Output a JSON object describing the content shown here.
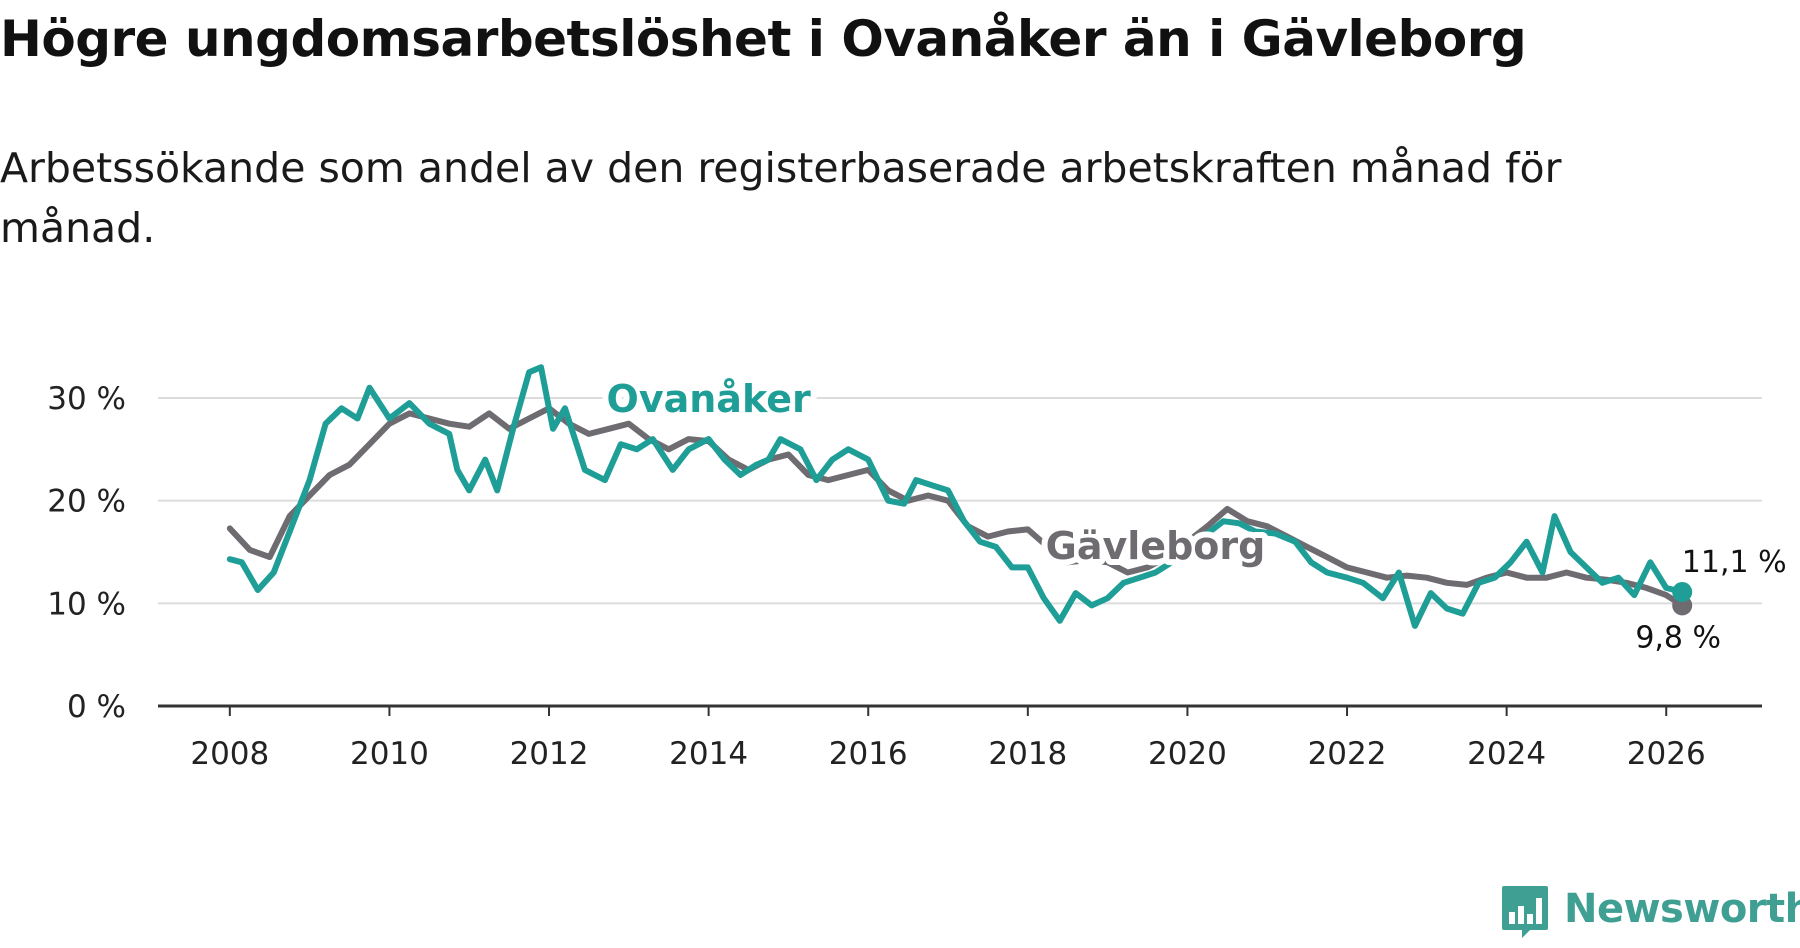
{
  "title": "Högre ungdomsarbetslöshet i Ovanåker än i Gävleborg",
  "subtitle": "Arbetssökande som andel av den registerbaserade arbetskraften månad för månad.",
  "brand": {
    "name": "Newsworthy",
    "color": "#3f9f93",
    "icon": "bar-chart-bubble-icon"
  },
  "chart_data": {
    "type": "line",
    "title": "Högre ungdomsarbetslöshet i Ovanåker än i Gävleborg",
    "xlabel": "",
    "ylabel": "",
    "xlim": [
      2007.1,
      2027.2
    ],
    "ylim": [
      0,
      30
    ],
    "x_ticks": [
      2008,
      2010,
      2012,
      2014,
      2016,
      2018,
      2020,
      2022,
      2024,
      2026
    ],
    "y_ticks": [
      0,
      10,
      20,
      30
    ],
    "y_tick_labels": [
      "0 %",
      "10 %",
      "20 %",
      "30 %"
    ],
    "grid": true,
    "series": [
      {
        "name": "Gävleborg",
        "color": "#6e6c71",
        "end_label": "9,8 %",
        "points": [
          [
            2008.0,
            17.3
          ],
          [
            2008.25,
            15.2
          ],
          [
            2008.5,
            14.5
          ],
          [
            2008.75,
            18.5
          ],
          [
            2009.0,
            20.5
          ],
          [
            2009.25,
            22.5
          ],
          [
            2009.5,
            23.5
          ],
          [
            2009.75,
            25.5
          ],
          [
            2010.0,
            27.5
          ],
          [
            2010.25,
            28.5
          ],
          [
            2010.5,
            28.0
          ],
          [
            2010.75,
            27.5
          ],
          [
            2011.0,
            27.2
          ],
          [
            2011.25,
            28.5
          ],
          [
            2011.5,
            27.0
          ],
          [
            2011.75,
            28.0
          ],
          [
            2012.0,
            29.0
          ],
          [
            2012.25,
            27.5
          ],
          [
            2012.5,
            26.5
          ],
          [
            2012.75,
            27.0
          ],
          [
            2013.0,
            27.5
          ],
          [
            2013.25,
            26.0
          ],
          [
            2013.5,
            25.0
          ],
          [
            2013.75,
            26.0
          ],
          [
            2014.0,
            25.8
          ],
          [
            2014.25,
            24.0
          ],
          [
            2014.5,
            23.0
          ],
          [
            2014.75,
            24.0
          ],
          [
            2015.0,
            24.5
          ],
          [
            2015.25,
            22.5
          ],
          [
            2015.5,
            22.0
          ],
          [
            2015.75,
            22.5
          ],
          [
            2016.0,
            23.0
          ],
          [
            2016.25,
            21.0
          ],
          [
            2016.5,
            20.0
          ],
          [
            2016.75,
            20.5
          ],
          [
            2017.0,
            20.0
          ],
          [
            2017.25,
            17.5
          ],
          [
            2017.5,
            16.5
          ],
          [
            2017.75,
            17.0
          ],
          [
            2018.0,
            17.2
          ],
          [
            2018.25,
            15.5
          ],
          [
            2018.5,
            14.0
          ],
          [
            2018.75,
            14.2
          ],
          [
            2019.0,
            14.0
          ],
          [
            2019.25,
            13.0
          ],
          [
            2019.5,
            13.5
          ],
          [
            2019.75,
            14.5
          ],
          [
            2020.0,
            16.0
          ],
          [
            2020.25,
            17.5
          ],
          [
            2020.5,
            19.2
          ],
          [
            2020.75,
            18.0
          ],
          [
            2021.0,
            17.5
          ],
          [
            2021.25,
            16.5
          ],
          [
            2021.5,
            15.5
          ],
          [
            2021.75,
            14.5
          ],
          [
            2022.0,
            13.5
          ],
          [
            2022.25,
            13.0
          ],
          [
            2022.5,
            12.5
          ],
          [
            2022.75,
            12.7
          ],
          [
            2023.0,
            12.5
          ],
          [
            2023.25,
            12.0
          ],
          [
            2023.5,
            11.8
          ],
          [
            2023.75,
            12.5
          ],
          [
            2024.0,
            13.0
          ],
          [
            2024.25,
            12.5
          ],
          [
            2024.5,
            12.5
          ],
          [
            2024.75,
            13.0
          ],
          [
            2025.0,
            12.5
          ],
          [
            2025.25,
            12.3
          ],
          [
            2025.5,
            12.0
          ],
          [
            2025.75,
            11.5
          ],
          [
            2026.0,
            10.8
          ],
          [
            2026.2,
            9.8
          ]
        ]
      },
      {
        "name": "Ovanåker",
        "color": "#1e9e96",
        "end_label": "11,1 %",
        "points": [
          [
            2008.0,
            14.3
          ],
          [
            2008.15,
            14.0
          ],
          [
            2008.35,
            11.3
          ],
          [
            2008.55,
            13.0
          ],
          [
            2008.75,
            17.0
          ],
          [
            2009.0,
            22.0
          ],
          [
            2009.2,
            27.5
          ],
          [
            2009.4,
            29.0
          ],
          [
            2009.6,
            28.0
          ],
          [
            2009.75,
            31.0
          ],
          [
            2010.0,
            28.0
          ],
          [
            2010.25,
            29.5
          ],
          [
            2010.5,
            27.5
          ],
          [
            2010.75,
            26.5
          ],
          [
            2010.85,
            23.0
          ],
          [
            2011.0,
            21.0
          ],
          [
            2011.2,
            24.0
          ],
          [
            2011.35,
            21.0
          ],
          [
            2011.55,
            27.0
          ],
          [
            2011.75,
            32.5
          ],
          [
            2011.9,
            33.0
          ],
          [
            2012.05,
            27.0
          ],
          [
            2012.2,
            29.0
          ],
          [
            2012.45,
            23.0
          ],
          [
            2012.7,
            22.0
          ],
          [
            2012.9,
            25.5
          ],
          [
            2013.1,
            25.0
          ],
          [
            2013.3,
            26.0
          ],
          [
            2013.55,
            23.0
          ],
          [
            2013.75,
            25.0
          ],
          [
            2014.0,
            26.0
          ],
          [
            2014.2,
            24.0
          ],
          [
            2014.4,
            22.5
          ],
          [
            2014.6,
            23.5
          ],
          [
            2014.75,
            24.0
          ],
          [
            2014.9,
            26.0
          ],
          [
            2015.15,
            25.0
          ],
          [
            2015.35,
            22.0
          ],
          [
            2015.55,
            24.0
          ],
          [
            2015.75,
            25.0
          ],
          [
            2016.0,
            24.0
          ],
          [
            2016.25,
            20.0
          ],
          [
            2016.45,
            19.7
          ],
          [
            2016.6,
            22.0
          ],
          [
            2016.8,
            21.5
          ],
          [
            2017.0,
            21.0
          ],
          [
            2017.2,
            18.0
          ],
          [
            2017.4,
            16.0
          ],
          [
            2017.6,
            15.5
          ],
          [
            2017.8,
            13.5
          ],
          [
            2018.0,
            13.5
          ],
          [
            2018.2,
            10.5
          ],
          [
            2018.4,
            8.3
          ],
          [
            2018.6,
            11.0
          ],
          [
            2018.8,
            9.8
          ],
          [
            2019.0,
            10.5
          ],
          [
            2019.2,
            12.0
          ],
          [
            2019.4,
            12.5
          ],
          [
            2019.6,
            13.0
          ],
          [
            2019.8,
            14.0
          ],
          [
            2020.0,
            15.5
          ],
          [
            2020.2,
            16.5
          ],
          [
            2020.45,
            18.0
          ],
          [
            2020.65,
            17.8
          ],
          [
            2020.85,
            17.0
          ],
          [
            2021.1,
            16.8
          ],
          [
            2021.35,
            16.0
          ],
          [
            2021.55,
            14.0
          ],
          [
            2021.75,
            13.0
          ],
          [
            2022.0,
            12.5
          ],
          [
            2022.2,
            12.0
          ],
          [
            2022.45,
            10.5
          ],
          [
            2022.65,
            13.0
          ],
          [
            2022.85,
            7.8
          ],
          [
            2023.05,
            11.0
          ],
          [
            2023.25,
            9.5
          ],
          [
            2023.45,
            9.0
          ],
          [
            2023.65,
            12.0
          ],
          [
            2023.85,
            12.5
          ],
          [
            2024.05,
            14.0
          ],
          [
            2024.25,
            16.0
          ],
          [
            2024.45,
            13.0
          ],
          [
            2024.6,
            18.5
          ],
          [
            2024.8,
            15.0
          ],
          [
            2025.0,
            13.5
          ],
          [
            2025.2,
            12.0
          ],
          [
            2025.4,
            12.5
          ],
          [
            2025.6,
            10.8
          ],
          [
            2025.8,
            14.0
          ],
          [
            2026.0,
            11.5
          ],
          [
            2026.2,
            11.1
          ]
        ]
      }
    ],
    "annotations": [
      {
        "text": "Ovanåker",
        "series": "Ovanåker",
        "at_x": 2014.0,
        "at_y": 30.0
      },
      {
        "text": "Gävleborg",
        "series": "Gävleborg",
        "at_x": 2019.6,
        "at_y": 15.7
      }
    ]
  }
}
